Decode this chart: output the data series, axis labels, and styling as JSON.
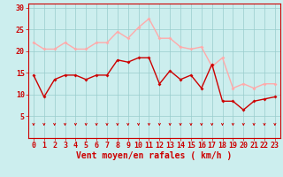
{
  "x": [
    0,
    1,
    2,
    3,
    4,
    5,
    6,
    7,
    8,
    9,
    10,
    11,
    12,
    13,
    14,
    15,
    16,
    17,
    18,
    19,
    20,
    21,
    22,
    23
  ],
  "wind_mean": [
    14.5,
    9.5,
    13.5,
    14.5,
    14.5,
    13.5,
    14.5,
    14.5,
    18.0,
    17.5,
    18.5,
    18.5,
    12.5,
    15.5,
    13.5,
    14.5,
    11.5,
    17.0,
    8.5,
    8.5,
    6.5,
    8.5,
    9.0,
    9.5
  ],
  "wind_gust": [
    22.0,
    20.5,
    20.5,
    22.0,
    20.5,
    20.5,
    22.0,
    22.0,
    24.5,
    23.0,
    25.5,
    27.5,
    23.0,
    23.0,
    21.0,
    20.5,
    21.0,
    16.5,
    18.5,
    11.5,
    12.5,
    11.5,
    12.5,
    12.5
  ],
  "mean_color": "#cc0000",
  "gust_color": "#ffaaaa",
  "bg_color": "#cceeee",
  "grid_color": "#99cccc",
  "axis_color": "#cc0000",
  "text_color": "#cc0000",
  "xlabel": "Vent moyen/en rafales ( km/h )",
  "ylim": [
    0,
    31
  ],
  "yticks": [
    5,
    10,
    15,
    20,
    25,
    30
  ],
  "xlim": [
    -0.5,
    23.5
  ],
  "label_fontsize": 7,
  "tick_fontsize": 6
}
